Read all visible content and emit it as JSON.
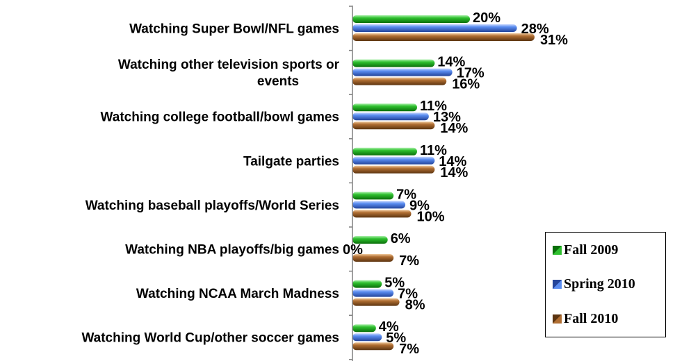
{
  "chart_data": {
    "type": "bar",
    "orientation": "horizontal",
    "categories": [
      "Watching Super Bowl/NFL games",
      "Watching other television sports or events",
      "Watching college football/bowl games",
      "Tailgate parties",
      "Watching baseball playoffs/World Series",
      "Watching NBA playoffs/big games",
      "Watching NCAA March Madness",
      "Watching World Cup/other soccer games"
    ],
    "series": [
      {
        "name": "Fall 2009",
        "color": "#1fa01f",
        "values": [
          20,
          14,
          11,
          11,
          7,
          6,
          5,
          4
        ],
        "labels": [
          "20%",
          "14%",
          "11%",
          "11%",
          "7%",
          "6%",
          "5%",
          "4%"
        ]
      },
      {
        "name": "Spring 2010",
        "color": "#4f7fe0",
        "values": [
          28,
          17,
          13,
          14,
          9,
          0,
          7,
          5
        ],
        "labels": [
          "28%",
          "17%",
          "13%",
          "14%",
          "9%",
          "0%",
          "7%",
          "5%"
        ]
      },
      {
        "name": "Fall 2010",
        "color": "#9c5f2a",
        "values": [
          31,
          16,
          14,
          14,
          10,
          7,
          8,
          7
        ],
        "labels": [
          "31%",
          "16%",
          "14%",
          "14%",
          "10%",
          "7%",
          "8%",
          "7%"
        ]
      }
    ],
    "xlim": [
      0,
      35
    ],
    "grid": false,
    "legend": {
      "position": "bottom-right",
      "entries": [
        "Fall 2009",
        "Spring 2010",
        "Fall 2010"
      ]
    },
    "title": "",
    "xlabel": "",
    "ylabel": ""
  }
}
